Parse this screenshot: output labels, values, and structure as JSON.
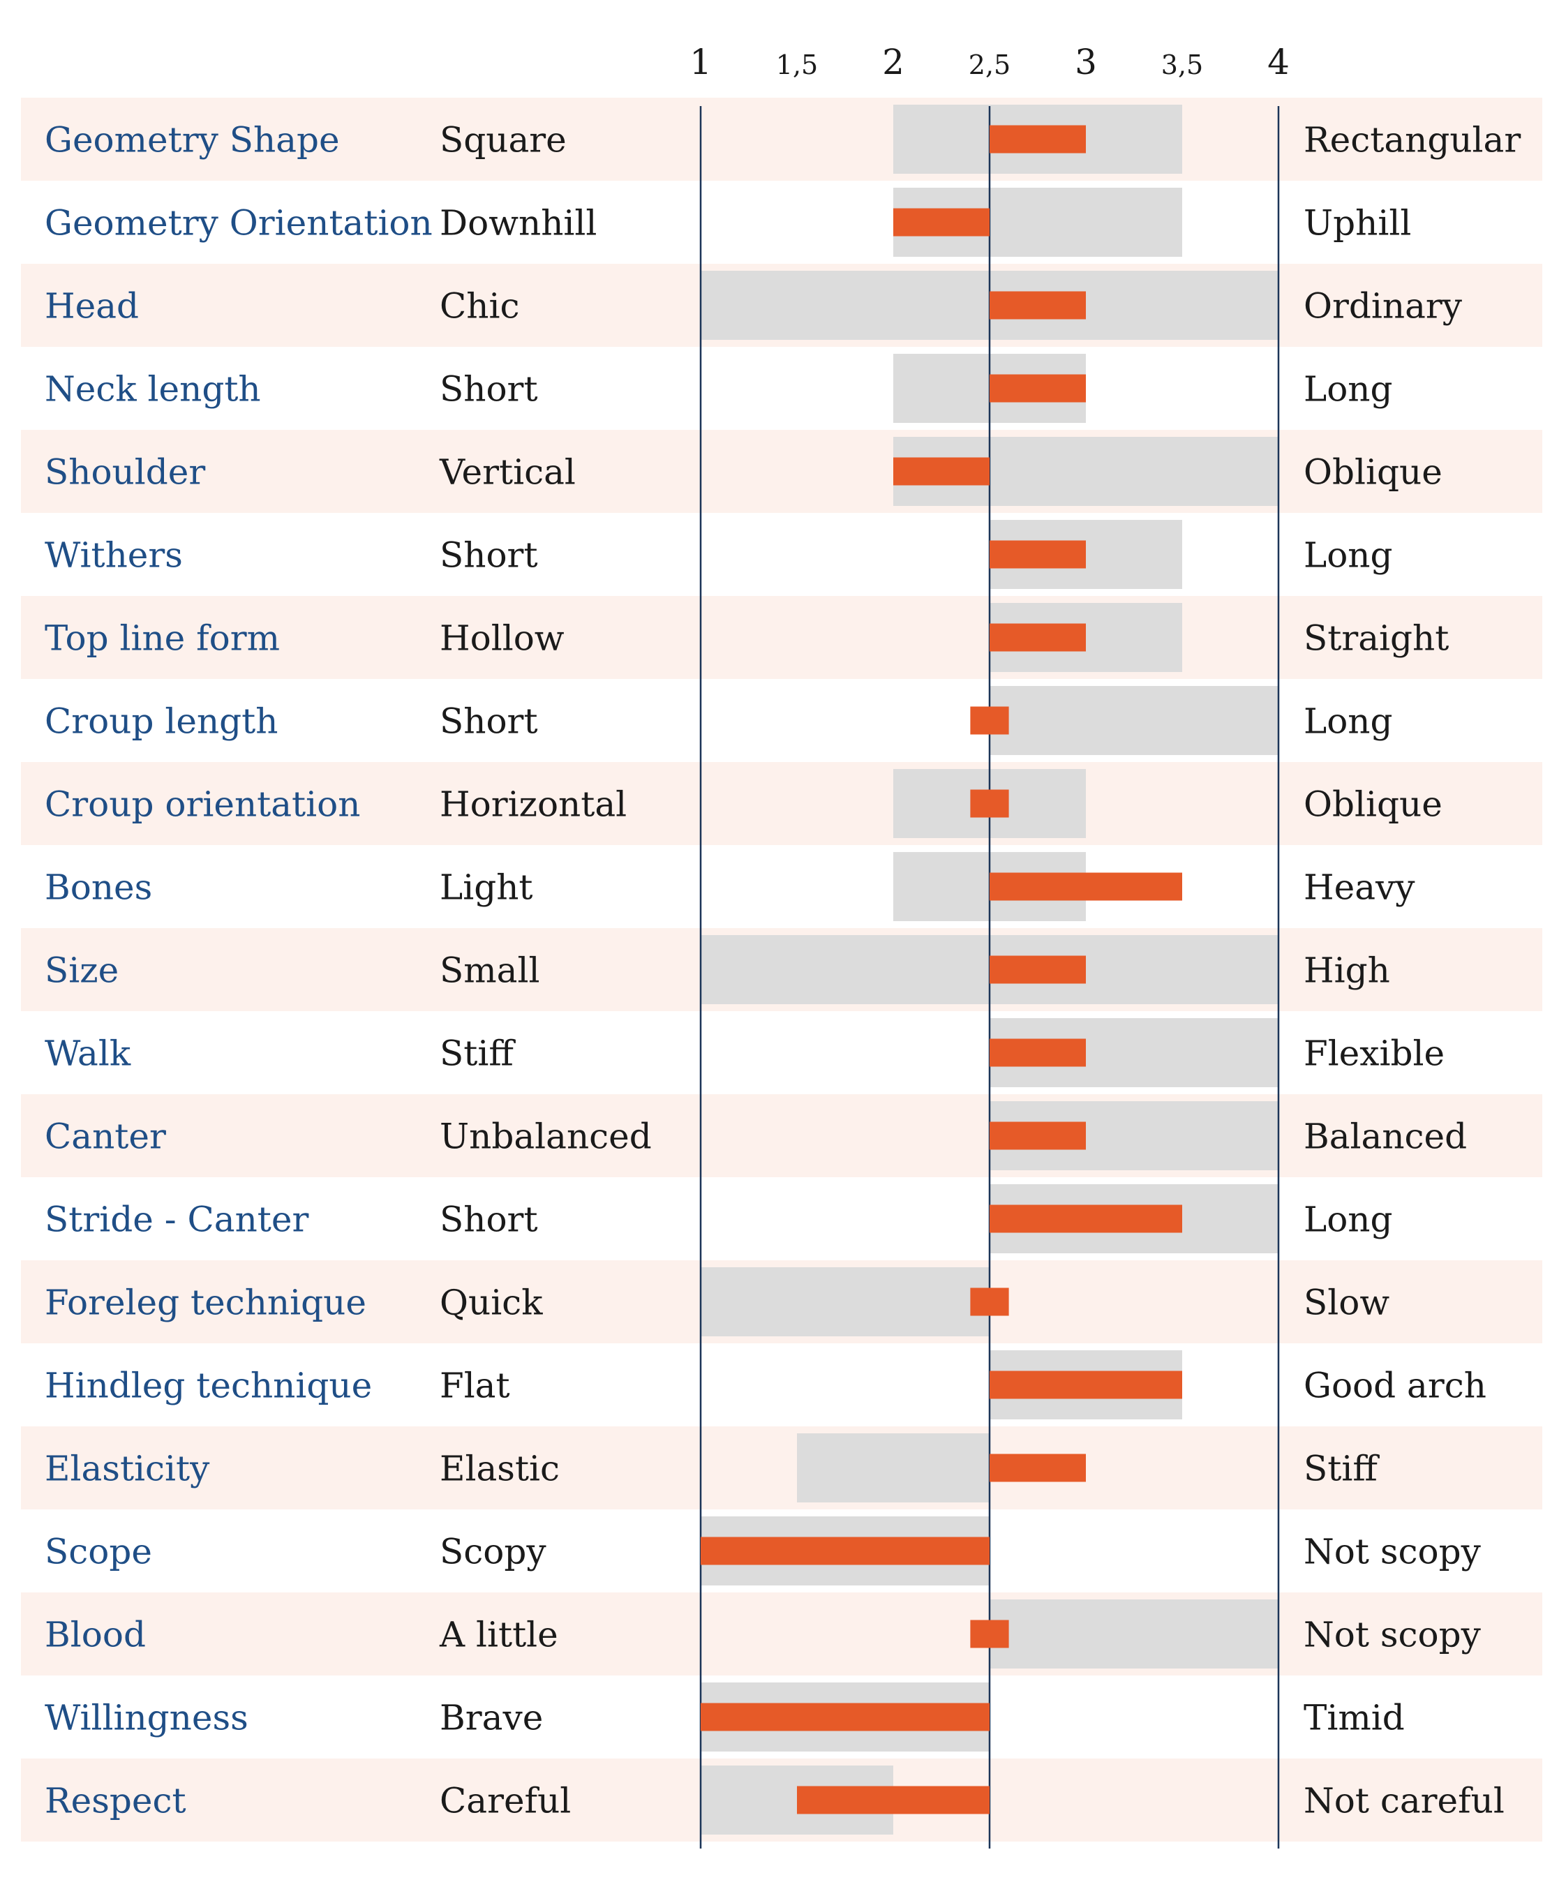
{
  "colors": {
    "band_odd": "#fdf1ec",
    "band_even": "#ffffff",
    "range_bar": "#dcdcdc",
    "value_bar": "#e65a28",
    "axis_line": "#1c3558",
    "trait_text": "#1f4e86",
    "pole_text": "#1a1a1a"
  },
  "chart_data": {
    "type": "bar",
    "orientation": "horizontal",
    "x_range": [
      1,
      4
    ],
    "reference_value": 2.5,
    "ticks": [
      {
        "value": 1,
        "label": "1"
      },
      {
        "value": 1.5,
        "label": "1,5"
      },
      {
        "value": 2,
        "label": "2"
      },
      {
        "value": 2.5,
        "label": "2,5"
      },
      {
        "value": 3,
        "label": "3"
      },
      {
        "value": 3.5,
        "label": "3,5"
      },
      {
        "value": 4,
        "label": "4"
      }
    ],
    "rows": [
      {
        "trait": "Geometry Shape",
        "left": "Square",
        "right": "Rectangular",
        "range": [
          2,
          3.5
        ],
        "value": 3
      },
      {
        "trait": "Geometry Orientation",
        "left": "Downhill",
        "right": "Uphill",
        "range": [
          2,
          3.5
        ],
        "value": 2
      },
      {
        "trait": "Head",
        "left": "Chic",
        "right": "Ordinary",
        "range": [
          1,
          4
        ],
        "value": 3
      },
      {
        "trait": "Neck length",
        "left": "Short",
        "right": "Long",
        "range": [
          2,
          3
        ],
        "value": 3
      },
      {
        "trait": "Shoulder",
        "left": "Vertical",
        "right": "Oblique",
        "range": [
          2,
          4
        ],
        "value": 2
      },
      {
        "trait": "Withers",
        "left": "Short",
        "right": "Long",
        "range": [
          2.5,
          3.5
        ],
        "value": 3
      },
      {
        "trait": "Top line form",
        "left": "Hollow",
        "right": "Straight",
        "range": [
          2.5,
          3.5
        ],
        "value": 3
      },
      {
        "trait": "Croup length",
        "left": "Short",
        "right": "Long",
        "range": [
          2.5,
          4
        ],
        "value": 2.5
      },
      {
        "trait": "Croup orientation",
        "left": "Horizontal",
        "right": "Oblique",
        "range": [
          2,
          3
        ],
        "value": 2.5
      },
      {
        "trait": "Bones",
        "left": "Light",
        "right": "Heavy",
        "range": [
          2,
          3
        ],
        "value": 3.5
      },
      {
        "trait": "Size",
        "left": "Small",
        "right": "High",
        "range": [
          1,
          4
        ],
        "value": 3
      },
      {
        "trait": "Walk",
        "left": "Stiff",
        "right": "Flexible",
        "range": [
          2.5,
          4
        ],
        "value": 3
      },
      {
        "trait": "Canter",
        "left": "Unbalanced",
        "right": "Balanced",
        "range": [
          2.5,
          4
        ],
        "value": 3
      },
      {
        "trait": "Stride - Canter",
        "left": "Short",
        "right": "Long",
        "range": [
          2.5,
          4
        ],
        "value": 3.5
      },
      {
        "trait": "Foreleg technique",
        "left": "Quick",
        "right": "Slow",
        "range": [
          1,
          2.5
        ],
        "value": 2.5
      },
      {
        "trait": "Hindleg technique",
        "left": "Flat",
        "right": "Good arch",
        "range": [
          2.5,
          3.5
        ],
        "value": 3.5
      },
      {
        "trait": "Elasticity",
        "left": "Elastic",
        "right": "Stiff",
        "range": [
          1.5,
          2.5
        ],
        "value": 3
      },
      {
        "trait": "Scope",
        "left": "Scopy",
        "right": "Not scopy",
        "range": [
          1,
          2.5
        ],
        "value": 1
      },
      {
        "trait": "Blood",
        "left": "A little",
        "right": "Not scopy",
        "range": [
          2.5,
          4
        ],
        "value": 2.5
      },
      {
        "trait": "Willingness",
        "left": "Brave",
        "right": "Timid",
        "range": [
          1,
          2.5
        ],
        "value": 1
      },
      {
        "trait": "Respect",
        "left": "Careful",
        "right": "Not careful",
        "range": [
          1,
          2
        ],
        "value": 1.5
      }
    ]
  }
}
